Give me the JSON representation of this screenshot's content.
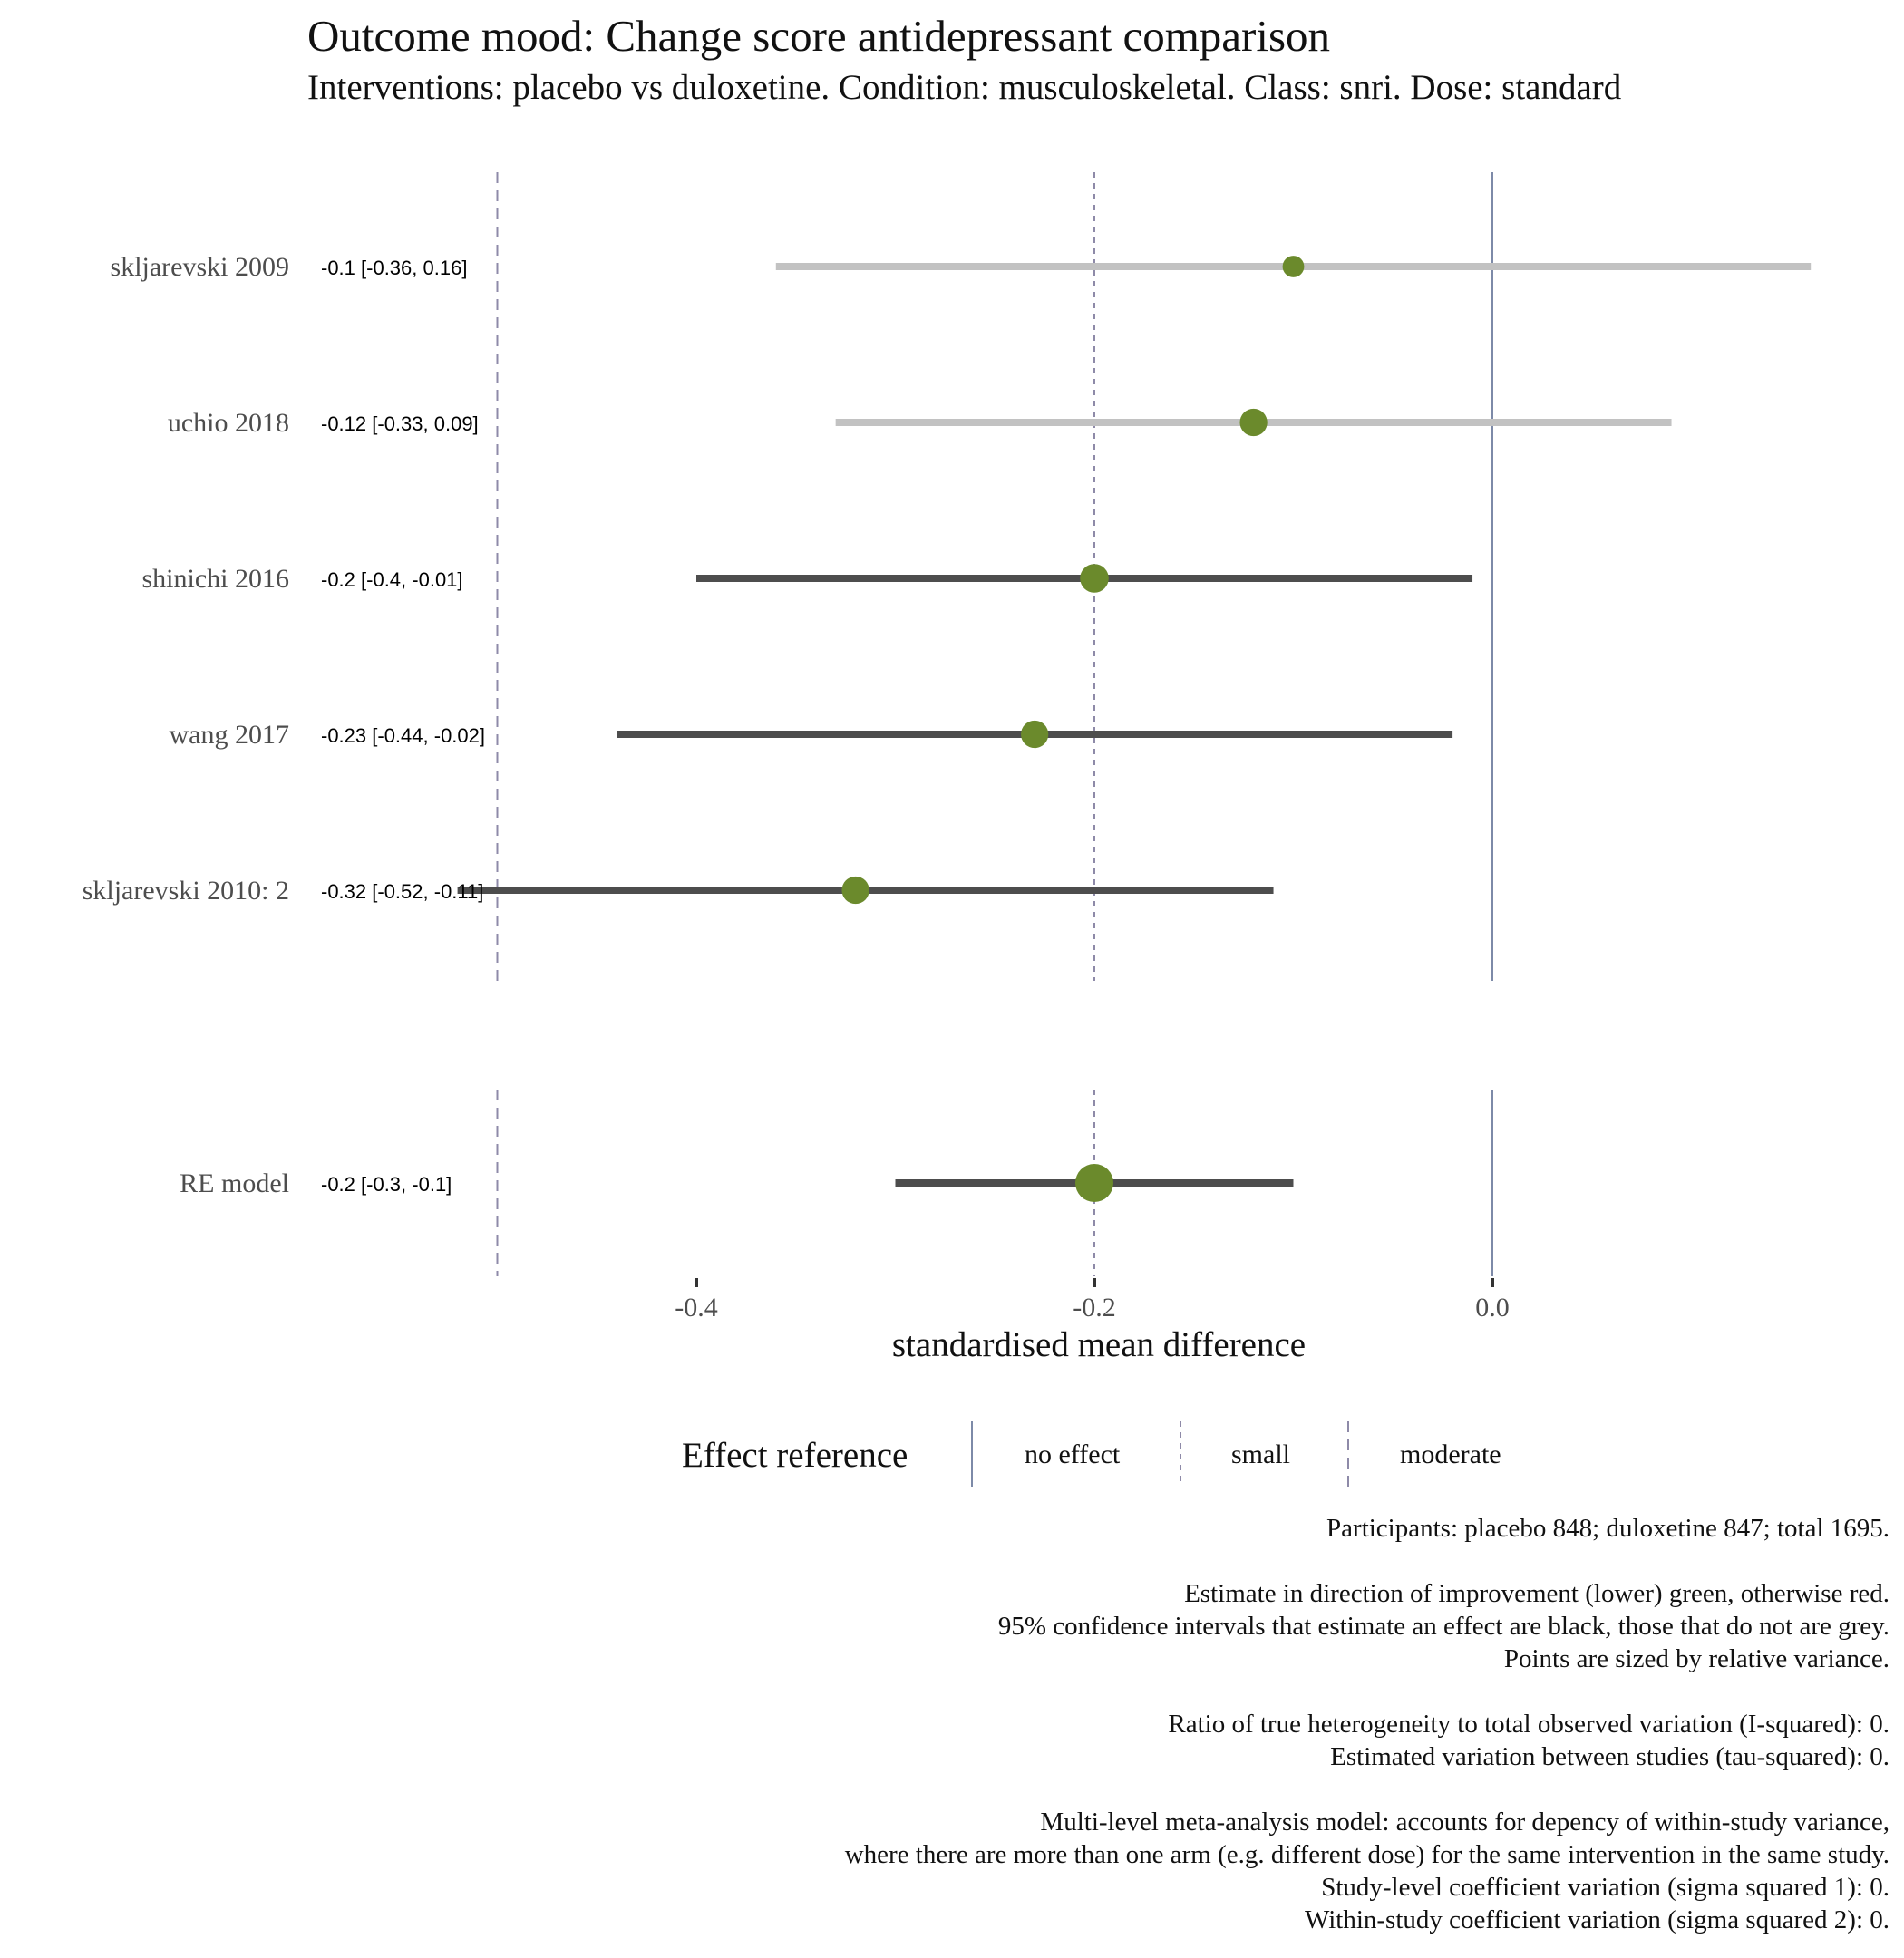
{
  "header": {
    "title": "Outcome mood: Change score antidepressant comparison",
    "subtitle": "Interventions: placebo vs duloxetine. Condition: musculoskeletal. Class: snri. Dose: standard"
  },
  "chart_data": {
    "type": "forest",
    "title": "Outcome mood: Change score antidepressant comparison",
    "subtitle": "Interventions: placebo vs duloxetine. Condition: musculoskeletal. Class: snri. Dose: standard",
    "xlabel": "standardised mean difference",
    "xlim": [
      -0.54,
      0.17
    ],
    "x_ticks": [
      -0.4,
      -0.2,
      0.0
    ],
    "x_tick_labels": [
      "-0.4",
      "-0.2",
      "0.0"
    ],
    "reference_lines": [
      {
        "label": "no effect",
        "x": 0.0,
        "style": "solid"
      },
      {
        "label": "small",
        "x": -0.2,
        "style": "dotted"
      },
      {
        "label": "moderate",
        "x": -0.5,
        "style": "dashed"
      }
    ],
    "studies": [
      {
        "name": "skljarevski 2009",
        "estimate": -0.1,
        "lower": -0.36,
        "upper": 0.16,
        "label": "-0.1 [-0.36, 0.16]",
        "ci_color": "grey",
        "point_size": 0.3
      },
      {
        "name": "uchio 2018",
        "estimate": -0.12,
        "lower": -0.33,
        "upper": 0.09,
        "label": "-0.12 [-0.33, 0.09]",
        "ci_color": "grey",
        "point_size": 0.55
      },
      {
        "name": "shinichi 2016",
        "estimate": -0.2,
        "lower": -0.4,
        "upper": -0.01,
        "label": "-0.2 [-0.4, -0.01]",
        "ci_color": "black",
        "point_size": 0.6
      },
      {
        "name": "wang 2017",
        "estimate": -0.23,
        "lower": -0.44,
        "upper": -0.02,
        "label": "-0.23 [-0.44, -0.02]",
        "ci_color": "black",
        "point_size": 0.55
      },
      {
        "name": "skljarevski 2010: 2",
        "estimate": -0.32,
        "lower": -0.52,
        "upper": -0.11,
        "label": "-0.32 [-0.52, -0.11]",
        "ci_color": "black",
        "point_size": 0.55
      }
    ],
    "summary": {
      "name": "RE model",
      "estimate": -0.2,
      "lower": -0.3,
      "upper": -0.1,
      "label": "-0.2 [-0.3, -0.1]",
      "ci_color": "black",
      "point_size": 1.0
    },
    "point_color": "#6b8a2c",
    "ci_colors": {
      "black": "#4d4d4d",
      "grey": "#c2c2c2"
    },
    "legend": {
      "title": "Effect reference",
      "position": "bottom"
    }
  },
  "footnotes": [
    "Participants: placebo 848; duloxetine 847; total 1695.",
    "",
    "Estimate in direction of improvement (lower) green, otherwise red.",
    "95% confidence intervals that estimate an effect are black, those that do not are grey.",
    "Points are sized by relative variance.",
    "",
    "Ratio of true heterogeneity to total observed variation (I-squared): 0.",
    "Estimated variation between studies (tau-squared): 0.",
    "",
    "Multi-level meta-analysis model: accounts for depency of within-study variance,",
    "where there are more than one arm (e.g. different dose) for the same intervention in the same study.",
    "Study-level coefficient variation (sigma squared 1): 0.",
    "Within-study coefficient variation (sigma squared 2): 0."
  ]
}
